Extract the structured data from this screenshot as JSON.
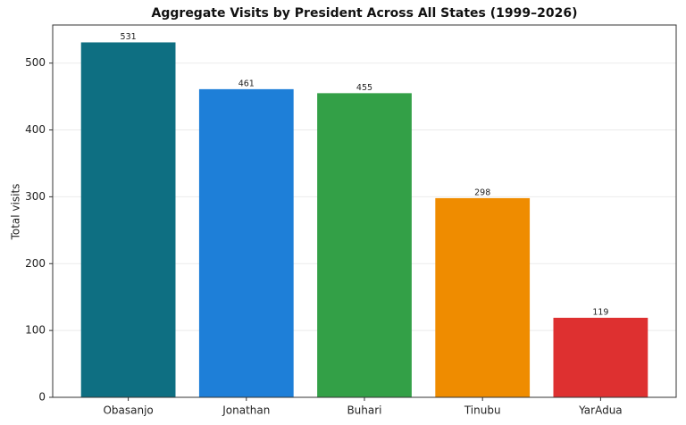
{
  "chart_data": {
    "type": "bar",
    "title": "Aggregate Visits by President Across All States (1999–2026)",
    "y_label": "Total visits",
    "categories": [
      "Obasanjo",
      "Jonathan",
      "Buhari",
      "Tinubu",
      "YarAdua"
    ],
    "values": [
      531,
      461,
      455,
      298,
      119
    ],
    "colors": [
      "#0e6f82",
      "#1e7fd8",
      "#33a047",
      "#ef8c00",
      "#de3030"
    ],
    "ylim": [
      0,
      557
    ],
    "yticks": [
      0,
      100,
      200,
      300,
      400,
      500
    ],
    "grid": true
  }
}
